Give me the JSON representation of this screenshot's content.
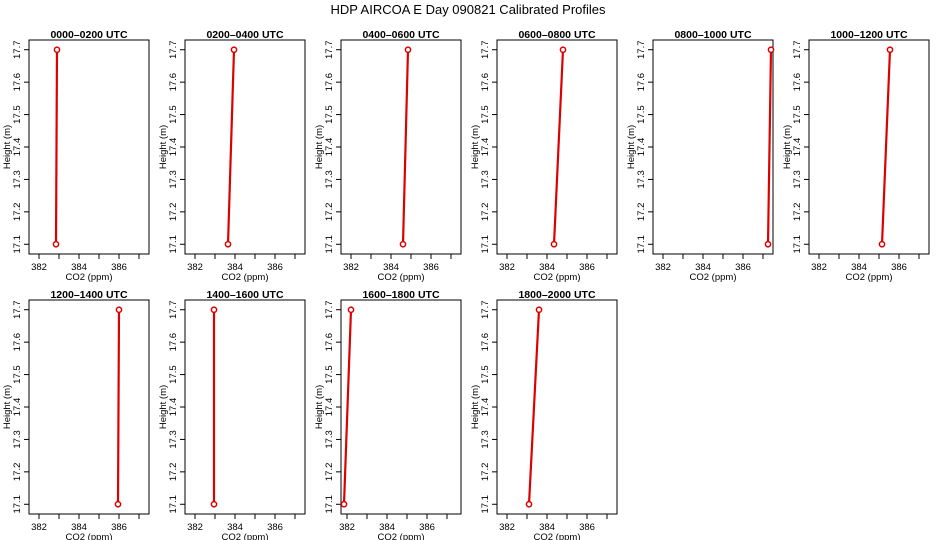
{
  "figure": {
    "title": "HDP AIRCOA E  Day 090821  Calibrated Profiles"
  },
  "chart_data": [
    {
      "type": "line",
      "title": "0000–0200 UTC",
      "xlabel": "CO2 (ppm)",
      "ylabel": "Height (m)",
      "xlim": [
        381.5,
        387.5
      ],
      "ylim": [
        17.07,
        17.73
      ],
      "xticks": [
        "382",
        "384",
        "386"
      ],
      "yticks": [
        "17.1",
        "17.2",
        "17.3",
        "17.4",
        "17.5",
        "17.6",
        "17.7"
      ],
      "series": [
        {
          "color": "#dd0000",
          "points": [
            {
              "x": 382.85,
              "y": 17.1
            },
            {
              "x": 382.9,
              "y": 17.7
            }
          ]
        }
      ]
    },
    {
      "type": "line",
      "title": "0200–0400 UTC",
      "xlabel": "CO2 (ppm)",
      "ylabel": "Height (m)",
      "xlim": [
        381.5,
        387.5
      ],
      "ylim": [
        17.07,
        17.73
      ],
      "xticks": [
        "382",
        "384",
        "386"
      ],
      "yticks": [
        "17.1",
        "17.2",
        "17.3",
        "17.4",
        "17.5",
        "17.6",
        "17.7"
      ],
      "series": [
        {
          "color": "#dd0000",
          "points": [
            {
              "x": 383.65,
              "y": 17.1
            },
            {
              "x": 383.95,
              "y": 17.7
            }
          ]
        }
      ]
    },
    {
      "type": "line",
      "title": "0400–0600 UTC",
      "xlabel": "CO2 (ppm)",
      "ylabel": "Height (m)",
      "xlim": [
        381.5,
        387.5
      ],
      "ylim": [
        17.07,
        17.73
      ],
      "xticks": [
        "382",
        "384",
        "386"
      ],
      "yticks": [
        "17.1",
        "17.2",
        "17.3",
        "17.4",
        "17.5",
        "17.6",
        "17.7"
      ],
      "series": [
        {
          "color": "#dd0000",
          "points": [
            {
              "x": 384.6,
              "y": 17.1
            },
            {
              "x": 384.85,
              "y": 17.7
            }
          ]
        }
      ]
    },
    {
      "type": "line",
      "title": "0600–0800 UTC",
      "xlabel": "CO2 (ppm)",
      "ylabel": "Height (m)",
      "xlim": [
        381.5,
        387.5
      ],
      "ylim": [
        17.07,
        17.73
      ],
      "xticks": [
        "382",
        "384",
        "386"
      ],
      "yticks": [
        "17.1",
        "17.2",
        "17.3",
        "17.4",
        "17.5",
        "17.6",
        "17.7"
      ],
      "series": [
        {
          "color": "#dd0000",
          "points": [
            {
              "x": 384.35,
              "y": 17.1
            },
            {
              "x": 384.8,
              "y": 17.7
            }
          ]
        }
      ]
    },
    {
      "type": "line",
      "title": "0800–1000 UTC",
      "xlabel": "CO2 (ppm)",
      "ylabel": "Height (m)",
      "xlim": [
        381.5,
        387.5
      ],
      "ylim": [
        17.07,
        17.73
      ],
      "xticks": [
        "382",
        "384",
        "386"
      ],
      "yticks": [
        "17.1",
        "17.2",
        "17.3",
        "17.4",
        "17.5",
        "17.6",
        "17.7"
      ],
      "series": [
        {
          "color": "#dd0000",
          "points": [
            {
              "x": 387.25,
              "y": 17.1
            },
            {
              "x": 387.4,
              "y": 17.7
            }
          ]
        }
      ]
    },
    {
      "type": "line",
      "title": "1000–1200 UTC",
      "xlabel": "CO2 (ppm)",
      "ylabel": "Height (m)",
      "xlim": [
        381.5,
        387.5
      ],
      "ylim": [
        17.07,
        17.73
      ],
      "xticks": [
        "382",
        "384",
        "386"
      ],
      "yticks": [
        "17.1",
        "17.2",
        "17.3",
        "17.4",
        "17.5",
        "17.6",
        "17.7"
      ],
      "series": [
        {
          "color": "#dd0000",
          "points": [
            {
              "x": 385.15,
              "y": 17.1
            },
            {
              "x": 385.55,
              "y": 17.7
            }
          ]
        }
      ]
    },
    {
      "type": "line",
      "title": "1200–1400 UTC",
      "xlabel": "CO2 (ppm)",
      "ylabel": "Height (m)",
      "xlim": [
        381.5,
        387.5
      ],
      "ylim": [
        17.07,
        17.73
      ],
      "xticks": [
        "382",
        "384",
        "386"
      ],
      "yticks": [
        "17.1",
        "17.2",
        "17.3",
        "17.4",
        "17.5",
        "17.6",
        "17.7"
      ],
      "series": [
        {
          "color": "#dd0000",
          "points": [
            {
              "x": 385.95,
              "y": 17.1
            },
            {
              "x": 386.0,
              "y": 17.7
            }
          ]
        }
      ]
    },
    {
      "type": "line",
      "title": "1400–1600 UTC",
      "xlabel": "CO2 (ppm)",
      "ylabel": "Height (m)",
      "xlim": [
        381.5,
        387.5
      ],
      "ylim": [
        17.07,
        17.73
      ],
      "xticks": [
        "382",
        "384",
        "386"
      ],
      "yticks": [
        "17.1",
        "17.2",
        "17.3",
        "17.4",
        "17.5",
        "17.6",
        "17.7"
      ],
      "series": [
        {
          "color": "#dd0000",
          "points": [
            {
              "x": 382.95,
              "y": 17.1
            },
            {
              "x": 382.95,
              "y": 17.7
            }
          ]
        }
      ]
    },
    {
      "type": "line",
      "title": "1600–1800 UTC",
      "xlabel": "CO2 (ppm)",
      "ylabel": "Height (m)",
      "xlim": [
        381.7,
        387.7
      ],
      "ylim": [
        17.07,
        17.73
      ],
      "xticks": [
        "382",
        "384",
        "386"
      ],
      "yticks": [
        "17.1",
        "17.2",
        "17.3",
        "17.4",
        "17.5",
        "17.6",
        "17.7"
      ],
      "series": [
        {
          "color": "#dd0000",
          "points": [
            {
              "x": 381.85,
              "y": 17.1
            },
            {
              "x": 382.2,
              "y": 17.7
            }
          ]
        }
      ]
    },
    {
      "type": "line",
      "title": "1800–2000 UTC",
      "xlabel": "CO2 (ppm)",
      "ylabel": "Height (m)",
      "xlim": [
        381.5,
        387.5
      ],
      "ylim": [
        17.07,
        17.73
      ],
      "xticks": [
        "382",
        "384",
        "386"
      ],
      "yticks": [
        "17.1",
        "17.2",
        "17.3",
        "17.4",
        "17.5",
        "17.6",
        "17.7"
      ],
      "series": [
        {
          "color": "#dd0000",
          "points": [
            {
              "x": 383.1,
              "y": 17.1
            },
            {
              "x": 383.6,
              "y": 17.7
            }
          ]
        }
      ]
    }
  ]
}
